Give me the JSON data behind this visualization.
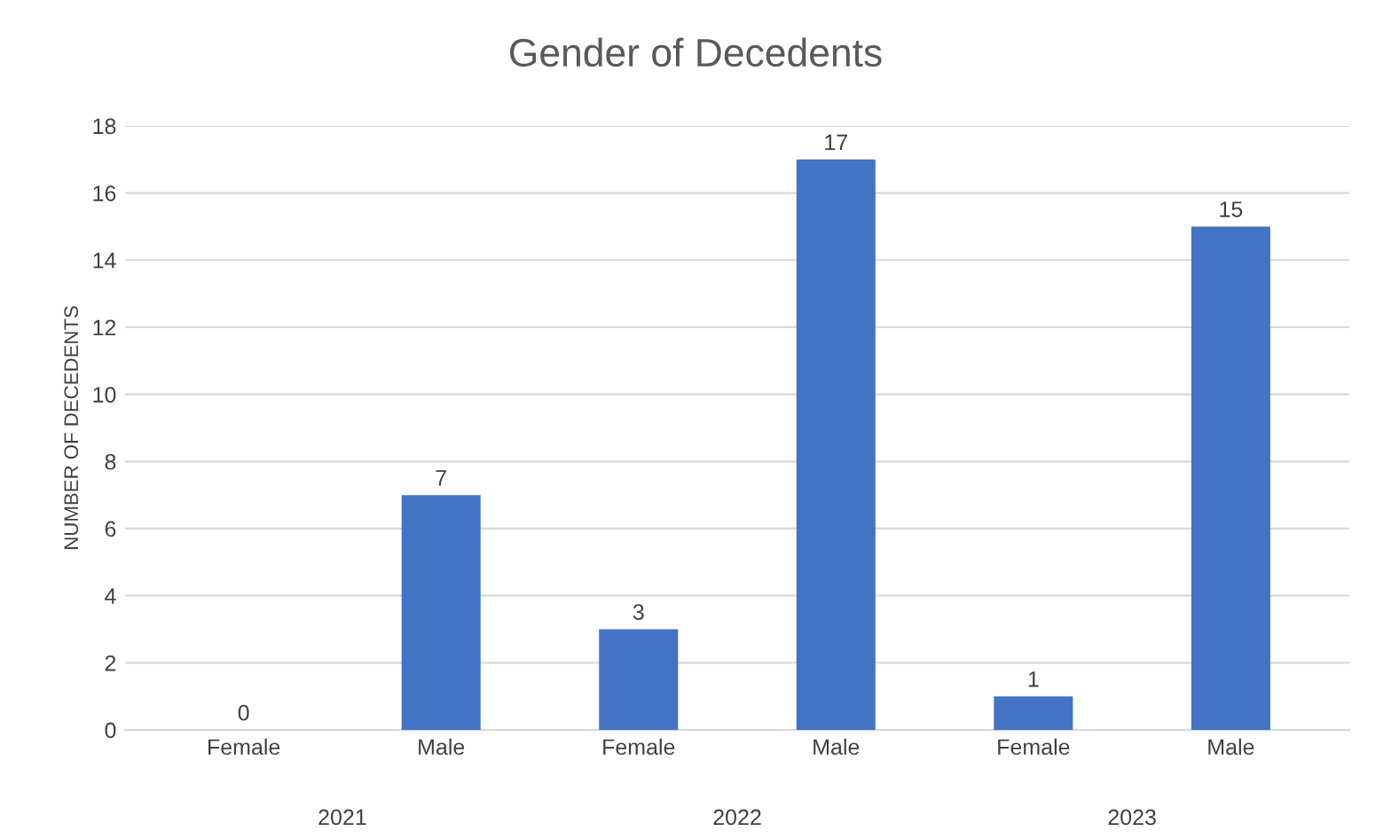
{
  "chart_data": {
    "type": "bar",
    "title": "Gender of Decedents",
    "ylabel": "NUMBER OF DECEDENTS",
    "categories": [
      "Female",
      "Male",
      "Female",
      "Male",
      "Female",
      "Male"
    ],
    "values": [
      0,
      7,
      3,
      17,
      1,
      15
    ],
    "color": "#4472c4",
    "ylim": [
      0,
      18
    ],
    "yticks": [
      0,
      2,
      4,
      6,
      8,
      10,
      12,
      14,
      16,
      18
    ],
    "grid": "y",
    "data_labels": true,
    "annotations": [
      "2021",
      "2022",
      "2023"
    ]
  }
}
